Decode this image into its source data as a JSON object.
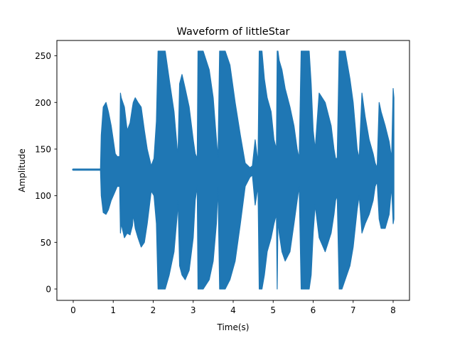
{
  "chart_data": {
    "type": "line",
    "title": "Waveform of littleStar",
    "xlabel": "Time(s)",
    "ylabel": "Amplitude",
    "xlim": [
      -0.4,
      8.4
    ],
    "ylim": [
      -13,
      268
    ],
    "xticks": [
      0,
      1,
      2,
      3,
      4,
      5,
      6,
      7,
      8
    ],
    "yticks": [
      0,
      50,
      100,
      150,
      200,
      250
    ],
    "grid": false,
    "legend": null,
    "series": [
      {
        "name": "littleStar",
        "color": "#1f77b4",
        "description": "8-bit audio waveform envelope, centered at 128; silent (flat at 128) from 0 to ~0.68 s",
        "envelope": {
          "t": [
            0.0,
            0.68,
            0.7,
            0.75,
            0.82,
            0.88,
            0.95,
            1.0,
            1.05,
            1.1,
            1.16,
            1.18,
            1.2,
            1.28,
            1.35,
            1.42,
            1.48,
            1.5,
            1.55,
            1.62,
            1.7,
            1.78,
            1.85,
            1.95,
            2.02,
            2.08,
            2.12,
            2.15,
            2.3,
            2.4,
            2.52,
            2.6,
            2.62,
            2.66,
            2.72,
            2.8,
            2.9,
            3.0,
            3.05,
            3.1,
            3.12,
            3.15,
            3.25,
            3.4,
            3.5,
            3.58,
            3.62,
            3.66,
            3.7,
            3.8,
            3.92,
            4.05,
            4.18,
            4.3,
            4.42,
            4.48,
            4.55,
            4.62,
            4.65,
            4.72,
            4.78,
            4.85,
            4.95,
            5.02,
            5.08,
            5.1,
            5.12,
            5.15,
            5.22,
            5.3,
            5.42,
            5.52,
            5.6,
            5.65,
            5.7,
            5.8,
            5.9,
            5.95,
            6.0,
            6.05,
            6.15,
            6.3,
            6.45,
            6.52,
            6.56,
            6.6,
            6.65,
            6.72,
            6.8,
            6.92,
            7.0,
            7.05,
            7.1,
            7.15,
            7.22,
            7.3,
            7.4,
            7.5,
            7.55,
            7.6,
            7.65,
            7.7,
            7.8,
            7.9,
            7.96,
            8.0,
            8.02
          ],
          "upper": [
            128,
            128,
            165,
            195,
            200,
            190,
            175,
            160,
            145,
            142,
            142,
            210,
            205,
            195,
            170,
            178,
            195,
            200,
            205,
            200,
            195,
            170,
            150,
            132,
            140,
            180,
            255,
            255,
            255,
            225,
            190,
            150,
            145,
            220,
            230,
            215,
            195,
            160,
            145,
            140,
            255,
            255,
            255,
            235,
            205,
            160,
            140,
            255,
            255,
            255,
            240,
            200,
            165,
            135,
            130,
            132,
            160,
            135,
            255,
            255,
            225,
            205,
            190,
            160,
            150,
            255,
            255,
            245,
            235,
            215,
            195,
            175,
            150,
            140,
            255,
            255,
            255,
            220,
            170,
            150,
            210,
            200,
            175,
            150,
            140,
            140,
            255,
            255,
            255,
            225,
            200,
            175,
            150,
            140,
            210,
            185,
            160,
            145,
            135,
            130,
            200,
            190,
            175,
            158,
            140,
            215,
            205
          ],
          "lower": [
            128,
            128,
            100,
            82,
            80,
            85,
            95,
            100,
            105,
            110,
            110,
            60,
            70,
            55,
            60,
            58,
            68,
            80,
            65,
            55,
            45,
            50,
            70,
            105,
            100,
            70,
            0,
            0,
            0,
            15,
            40,
            80,
            95,
            25,
            15,
            10,
            20,
            55,
            95,
            110,
            0,
            0,
            0,
            10,
            30,
            70,
            110,
            0,
            0,
            0,
            10,
            30,
            70,
            110,
            120,
            122,
            90,
            110,
            0,
            0,
            15,
            40,
            55,
            70,
            80,
            0,
            75,
            60,
            40,
            30,
            40,
            70,
            95,
            110,
            0,
            0,
            0,
            15,
            60,
            90,
            55,
            40,
            60,
            80,
            95,
            100,
            0,
            0,
            10,
            25,
            45,
            65,
            85,
            100,
            60,
            70,
            80,
            95,
            110,
            115,
            75,
            65,
            65,
            80,
            110,
            70,
            75
          ]
        }
      }
    ]
  }
}
